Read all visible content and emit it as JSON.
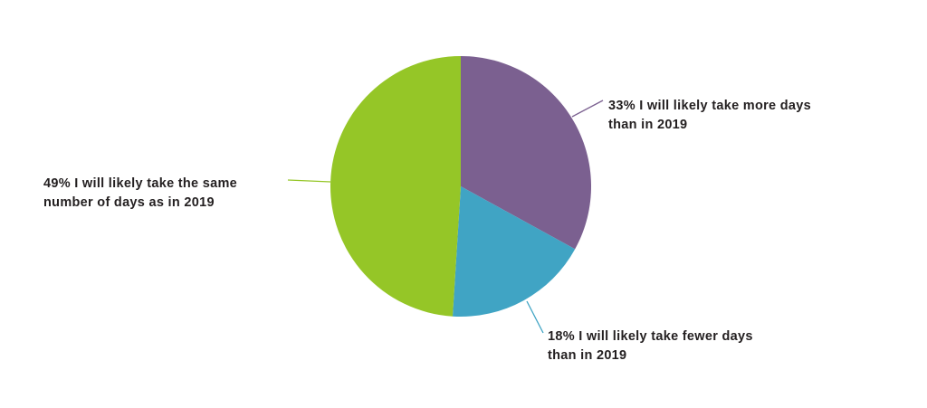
{
  "chart_data": {
    "type": "pie",
    "title": "",
    "slices": [
      {
        "label_line1": "33% I will likely take more days",
        "label_line2": "than in 2019",
        "value": 33,
        "color": "#7b6090"
      },
      {
        "label_line1": "18% I will likely take fewer days",
        "label_line2": "than in 2019",
        "value": 18,
        "color": "#40a4c4"
      },
      {
        "label_line1": "49% I will likely take the same",
        "label_line2": "number of days as in 2019",
        "value": 49,
        "color": "#95c627"
      }
    ]
  }
}
